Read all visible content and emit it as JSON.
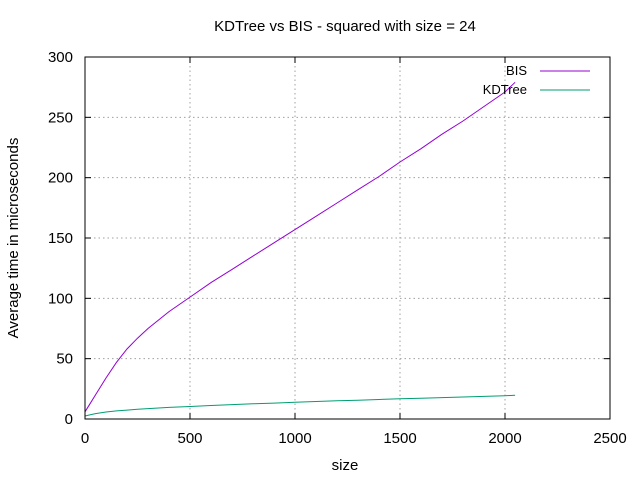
{
  "chart_data": {
    "type": "line",
    "title": "KDTree vs BIS - squared with size = 24",
    "xlabel": "size",
    "ylabel": "Average time in microseconds",
    "xlim": [
      0,
      2500
    ],
    "ylim": [
      0,
      300
    ],
    "xticks": [
      0,
      500,
      1000,
      1500,
      2000,
      2500
    ],
    "yticks": [
      0,
      50,
      100,
      150,
      200,
      250,
      300
    ],
    "grid": true,
    "legend_position": "top-right",
    "series": [
      {
        "name": "BIS",
        "color": "#9400d3",
        "x": [
          0,
          25,
          50,
          100,
          150,
          200,
          250,
          300,
          400,
          500,
          600,
          700,
          800,
          900,
          1000,
          1100,
          1200,
          1300,
          1400,
          1500,
          1600,
          1700,
          1800,
          1900,
          2000,
          2048
        ],
        "y": [
          6,
          13,
          20,
          34,
          47,
          58,
          67,
          75,
          89,
          101,
          113,
          124,
          135,
          146,
          157,
          168,
          179,
          190,
          201,
          213,
          224,
          236,
          247,
          259,
          271,
          279
        ]
      },
      {
        "name": "KDTree",
        "color": "#009e73",
        "x": [
          0,
          25,
          50,
          100,
          150,
          200,
          250,
          300,
          400,
          500,
          600,
          700,
          800,
          900,
          1000,
          1100,
          1200,
          1300,
          1400,
          1500,
          1600,
          1700,
          1800,
          1900,
          2000,
          2048
        ],
        "y": [
          2.5,
          3.5,
          4.5,
          5.8,
          6.7,
          7.4,
          8.0,
          8.6,
          9.6,
          10.4,
          11.2,
          11.9,
          12.6,
          13.2,
          13.9,
          14.5,
          15.1,
          15.6,
          16.2,
          16.7,
          17.2,
          17.7,
          18.2,
          18.7,
          19.3,
          19.6
        ]
      }
    ]
  }
}
